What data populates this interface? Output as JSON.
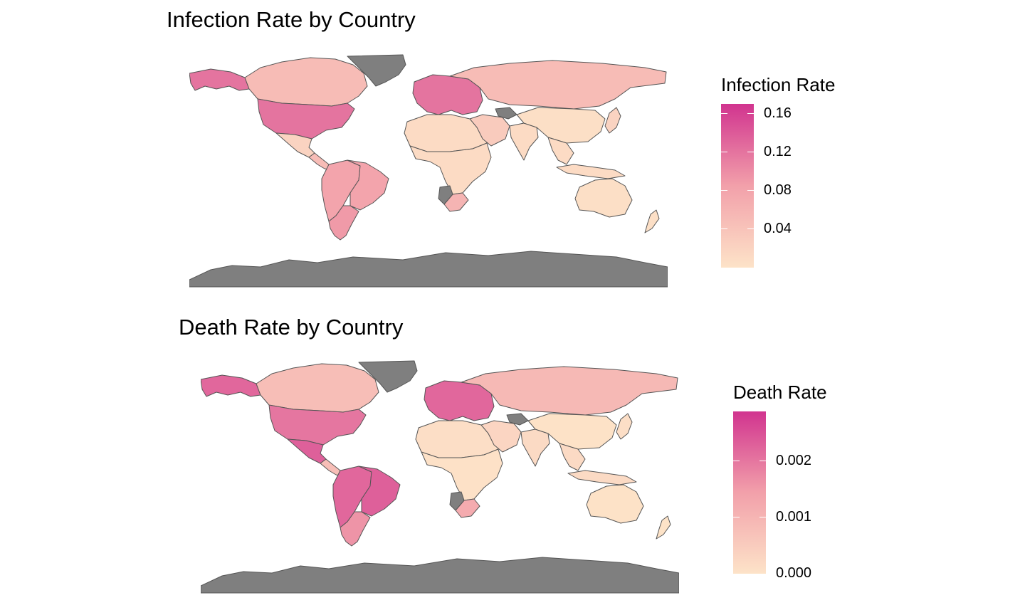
{
  "colors": {
    "scale_low": "#FDE3C8",
    "scale_mid": "#F2A0AA",
    "scale_high": "#D1348F",
    "no_data": "#7F7F7F",
    "border": "#555555"
  },
  "maps": [
    {
      "title": "Infection Rate by Country",
      "legend_title": "Infection Rate",
      "legend_ticks": [
        {
          "value": 0.16,
          "label": "0.16"
        },
        {
          "value": 0.12,
          "label": "0.12"
        },
        {
          "value": 0.08,
          "label": "0.08"
        },
        {
          "value": 0.04,
          "label": "0.04"
        }
      ],
      "scale_min": 0.0,
      "scale_max": 0.17,
      "regions": [
        {
          "id": "alaska",
          "value": 0.12
        },
        {
          "id": "canada",
          "value": 0.05
        },
        {
          "id": "usa",
          "value": 0.12
        },
        {
          "id": "mexico",
          "value": 0.02
        },
        {
          "id": "central-america",
          "value": 0.05
        },
        {
          "id": "south-america",
          "value": 0.08
        },
        {
          "id": "brazil",
          "value": 0.08
        },
        {
          "id": "patagonia",
          "value": 0.09
        },
        {
          "id": "greenland",
          "value": null
        },
        {
          "id": "europe",
          "value": 0.12
        },
        {
          "id": "russia",
          "value": 0.05
        },
        {
          "id": "north-africa",
          "value": 0.01
        },
        {
          "id": "sub-saharan-africa",
          "value": 0.01
        },
        {
          "id": "southern-africa",
          "value": 0.06
        },
        {
          "id": "namibia",
          "value": null
        },
        {
          "id": "middle-east",
          "value": 0.03
        },
        {
          "id": "turkmenistan",
          "value": null
        },
        {
          "id": "india",
          "value": 0.01
        },
        {
          "id": "china",
          "value": 0.005
        },
        {
          "id": "southeast-asia",
          "value": 0.01
        },
        {
          "id": "indonesia",
          "value": 0.01
        },
        {
          "id": "japan",
          "value": 0.02
        },
        {
          "id": "australia",
          "value": 0.005
        },
        {
          "id": "new-zealand",
          "value": 0.005
        },
        {
          "id": "antarctica",
          "value": null
        }
      ]
    },
    {
      "title": "Death Rate by Country",
      "legend_title": "Death Rate",
      "legend_ticks": [
        {
          "value": 0.002,
          "label": "0.002"
        },
        {
          "value": 0.001,
          "label": "0.001"
        },
        {
          "value": 0.0,
          "label": "0.000"
        }
      ],
      "scale_min": 0.0,
      "scale_max": 0.00288,
      "regions": [
        {
          "id": "alaska",
          "value": 0.0022
        },
        {
          "id": "canada",
          "value": 0.0008
        },
        {
          "id": "usa",
          "value": 0.002
        },
        {
          "id": "mexico",
          "value": 0.0023
        },
        {
          "id": "central-america",
          "value": 0.0008
        },
        {
          "id": "south-america",
          "value": 0.0022
        },
        {
          "id": "brazil",
          "value": 0.0023
        },
        {
          "id": "patagonia",
          "value": 0.0016
        },
        {
          "id": "greenland",
          "value": null
        },
        {
          "id": "europe",
          "value": 0.0022
        },
        {
          "id": "russia",
          "value": 0.0009
        },
        {
          "id": "north-africa",
          "value": 0.0001
        },
        {
          "id": "sub-saharan-africa",
          "value": 5e-05
        },
        {
          "id": "southern-africa",
          "value": 0.0012
        },
        {
          "id": "namibia",
          "value": null
        },
        {
          "id": "middle-east",
          "value": 0.0003
        },
        {
          "id": "turkmenistan",
          "value": null
        },
        {
          "id": "india",
          "value": 0.0002
        },
        {
          "id": "china",
          "value": 3e-05
        },
        {
          "id": "southeast-asia",
          "value": 0.0002
        },
        {
          "id": "indonesia",
          "value": 0.0002
        },
        {
          "id": "japan",
          "value": 0.0001
        },
        {
          "id": "australia",
          "value": 3e-05
        },
        {
          "id": "new-zealand",
          "value": 1e-05
        },
        {
          "id": "antarctica",
          "value": null
        }
      ]
    }
  ]
}
